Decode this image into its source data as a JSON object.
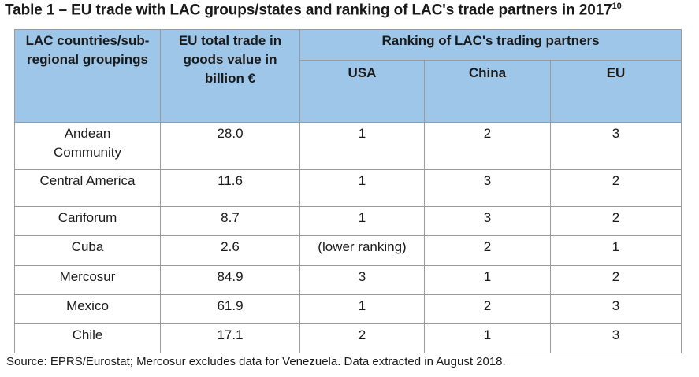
{
  "title": "Table 1 – EU trade with LAC groups/states and ranking of LAC's trade partners in 2017",
  "title_footnote": "10",
  "table": {
    "header": {
      "col1": "LAC countries/sub-regional groupings",
      "col2": "EU total trade in goods value in billion €",
      "group": "Ranking of LAC's trading partners",
      "usa": "USA",
      "china": "China",
      "eu": "EU"
    },
    "rows": [
      {
        "group": "Andean Community",
        "value": "28.0",
        "usa": "1",
        "china": "2",
        "eu": "3"
      },
      {
        "group": "Central America",
        "value": "11.6",
        "usa": "1",
        "china": "3",
        "eu": "2"
      },
      {
        "group": "Cariforum",
        "value": "8.7",
        "usa": "1",
        "china": "3",
        "eu": "2"
      },
      {
        "group": "Cuba",
        "value": "2.6",
        "usa": "(lower ranking)",
        "china": "2",
        "eu": "1"
      },
      {
        "group": "Mercosur",
        "value": "84.9",
        "usa": "3",
        "china": "1",
        "eu": "2"
      },
      {
        "group": "Mexico",
        "value": "61.9",
        "usa": "1",
        "china": "2",
        "eu": "3"
      },
      {
        "group": "Chile",
        "value": "17.1",
        "usa": "2",
        "china": "1",
        "eu": "3"
      }
    ]
  },
  "source": "Source: EPRS/Eurostat; Mercosur excludes data for Venezuela. Data extracted in August 2018."
}
